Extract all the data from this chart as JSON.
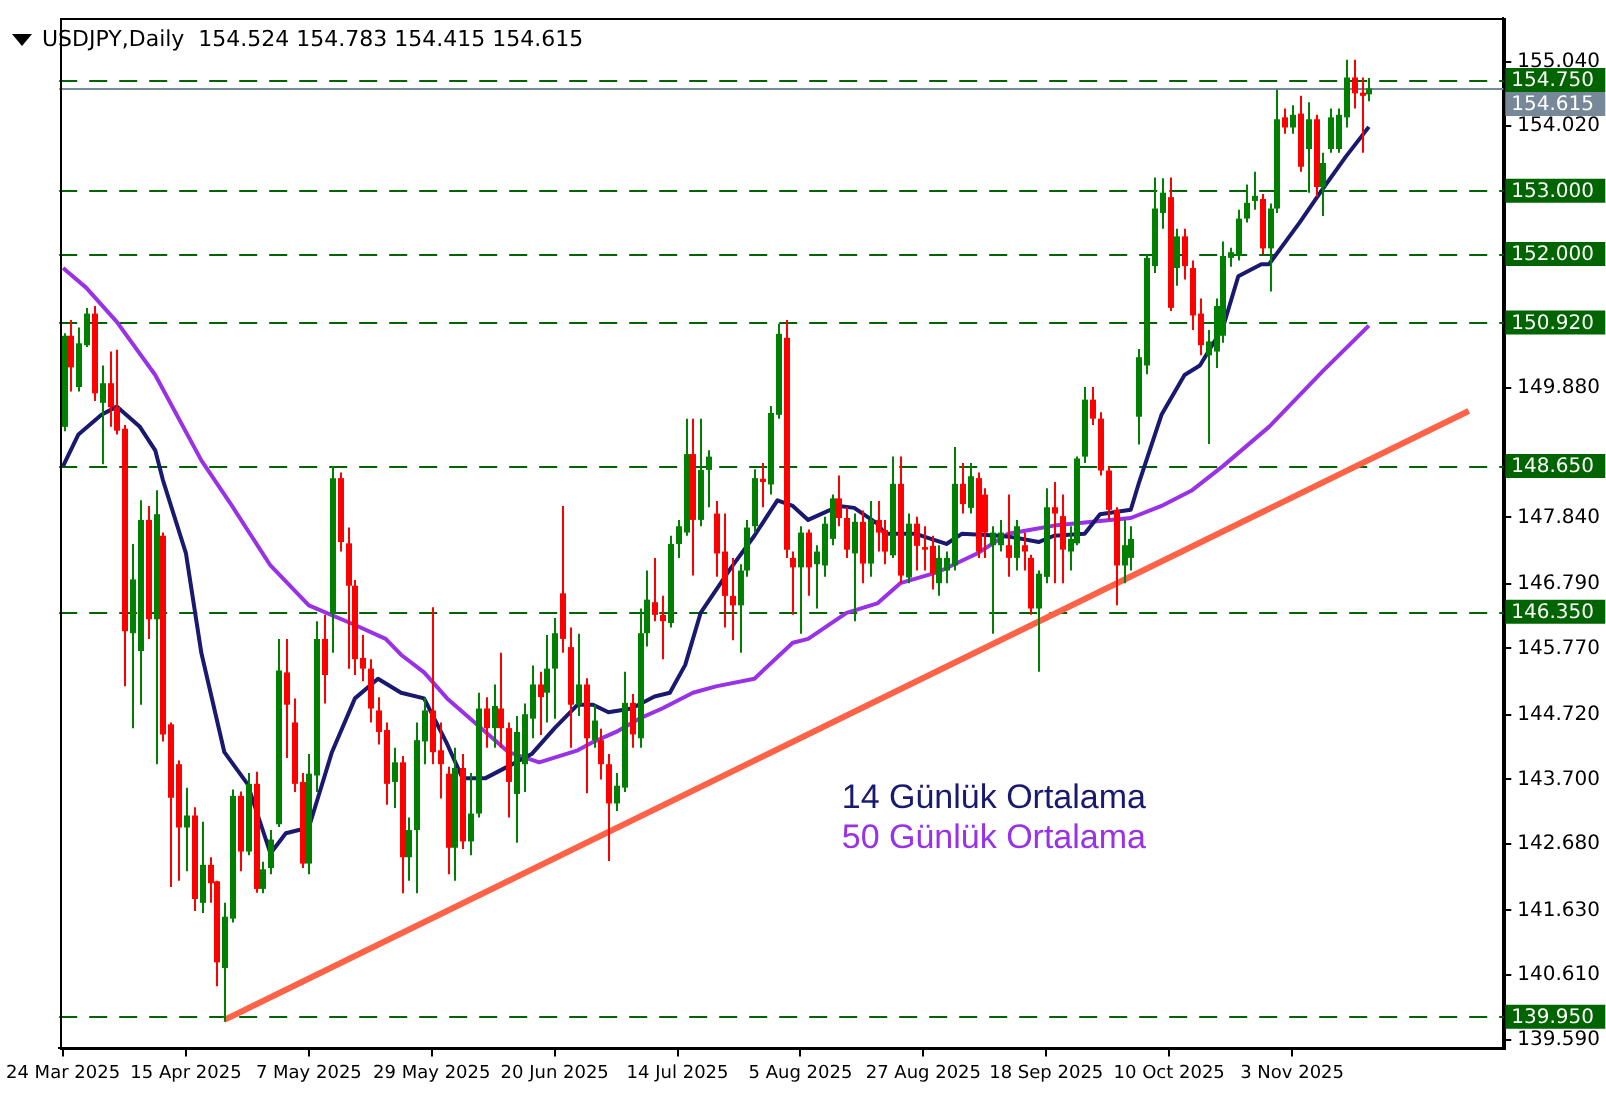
{
  "chart_data": {
    "type": "candlestick",
    "title": "USDJPY,Daily  154.524 154.783 154.415 154.615",
    "categories": [
      "24 Mar 2025",
      null,
      null,
      null,
      null,
      null,
      null,
      null,
      null,
      null,
      null,
      null,
      null,
      null,
      null,
      null,
      "15 Apr 2025",
      null,
      null,
      null,
      null,
      null,
      null,
      null,
      null,
      null,
      null,
      null,
      null,
      null,
      null,
      null,
      "7 May 2025",
      null,
      null,
      null,
      null,
      null,
      null,
      null,
      null,
      null,
      null,
      null,
      null,
      null,
      null,
      null,
      "29 May 2025",
      null,
      null,
      null,
      null,
      null,
      null,
      null,
      null,
      null,
      null,
      null,
      null,
      null,
      null,
      null,
      "20 Jun 2025",
      null,
      null,
      null,
      null,
      null,
      null,
      null,
      null,
      null,
      null,
      null,
      null,
      null,
      null,
      null,
      "14 Jul 2025",
      null,
      null,
      null,
      null,
      null,
      null,
      null,
      null,
      null,
      null,
      null,
      null,
      null,
      null,
      null,
      "5 Aug 2025",
      null,
      null,
      null,
      null,
      null,
      null,
      null,
      null,
      null,
      null,
      null,
      null,
      null,
      null,
      null,
      "27 Aug 2025",
      null,
      null,
      null,
      null,
      null,
      null,
      null,
      null,
      null,
      null,
      null,
      null,
      null,
      null,
      null,
      "18 Sep 2025",
      null,
      null,
      null,
      null,
      null,
      null,
      null,
      null,
      null,
      null,
      null,
      null,
      null,
      null,
      null,
      "10 Oct 2025",
      null,
      null,
      null,
      null,
      null,
      null,
      null,
      null,
      null,
      null,
      null,
      null,
      null,
      null,
      null,
      "3 Nov 2025",
      null,
      null,
      null,
      null,
      null,
      null,
      null,
      null,
      null,
      null,
      null,
      null,
      null,
      null,
      null,
      null,
      null,
      null,
      null,
      null,
      null,
      null,
      null,
      null,
      null,
      null,
      null
    ],
    "ohlc": [
      [
        149.27,
        150.75,
        149.2,
        150.71
      ],
      [
        150.71,
        150.96,
        149.83,
        150.21
      ],
      [
        149.9,
        150.84,
        149.83,
        150.59
      ],
      [
        150.56,
        151.15,
        150.53,
        151.06
      ],
      [
        151.06,
        151.18,
        149.68,
        149.8
      ],
      [
        149.65,
        150.24,
        148.68,
        149.96
      ],
      [
        149.96,
        150.46,
        149.27,
        149.58
      ],
      [
        149.58,
        150.49,
        149.15,
        149.21
      ],
      [
        149.24,
        149.3,
        145.17,
        146.04
      ],
      [
        146.01,
        147.42,
        144.51,
        146.86
      ],
      [
        145.73,
        148.11,
        144.88,
        147.8
      ],
      [
        147.8,
        148.02,
        145.92,
        146.23
      ],
      [
        146.23,
        148.27,
        143.94,
        147.89
      ],
      [
        147.55,
        147.6,
        144.3,
        144.41
      ],
      [
        144.57,
        144.6,
        142.0,
        143.41
      ],
      [
        143.94,
        144.0,
        142.1,
        142.94
      ],
      [
        142.94,
        143.57,
        142.25,
        143.13
      ],
      [
        143.13,
        143.26,
        141.62,
        141.81
      ],
      [
        141.75,
        143.03,
        141.59,
        142.35
      ],
      [
        142.35,
        142.47,
        141.75,
        142.06
      ],
      [
        142.09,
        142.1,
        140.43,
        140.81
      ],
      [
        140.72,
        141.75,
        139.87,
        141.53
      ],
      [
        141.5,
        143.54,
        141.44,
        143.44
      ],
      [
        143.44,
        143.51,
        142.25,
        142.56
      ],
      [
        142.56,
        143.8,
        142.5,
        143.63
      ],
      [
        143.63,
        143.82,
        141.91,
        141.97
      ],
      [
        141.97,
        142.4,
        141.9,
        142.28
      ],
      [
        142.3,
        142.9,
        142.2,
        142.75
      ],
      [
        142.99,
        145.92,
        142.95,
        145.42
      ],
      [
        145.39,
        145.92,
        144.04,
        144.88
      ],
      [
        144.6,
        144.98,
        143.5,
        143.63
      ],
      [
        143.66,
        143.8,
        142.3,
        142.37
      ],
      [
        142.37,
        144.1,
        142.2,
        143.79
      ],
      [
        143.76,
        146.2,
        143.5,
        145.92
      ],
      [
        145.92,
        146.3,
        144.9,
        145.35
      ],
      [
        146.32,
        148.65,
        145.7,
        148.46
      ],
      [
        148.46,
        148.55,
        147.3,
        147.45
      ],
      [
        147.43,
        147.68,
        145.45,
        146.76
      ],
      [
        146.76,
        146.85,
        145.35,
        145.6
      ],
      [
        145.62,
        145.98,
        145.25,
        145.45
      ],
      [
        145.45,
        145.6,
        144.6,
        144.82
      ],
      [
        144.79,
        145.0,
        144.25,
        144.45
      ],
      [
        144.48,
        144.6,
        143.3,
        143.63
      ],
      [
        143.66,
        144.2,
        143.25,
        143.97
      ],
      [
        143.97,
        144.07,
        141.9,
        142.47
      ],
      [
        142.47,
        143.1,
        142.1,
        142.9
      ],
      [
        142.9,
        144.6,
        141.9,
        144.32
      ],
      [
        144.3,
        145.0,
        143.94,
        144.79
      ],
      [
        144.79,
        146.42,
        143.94,
        144.13
      ],
      [
        144.16,
        144.6,
        143.4,
        143.94
      ],
      [
        143.79,
        143.9,
        142.2,
        142.62
      ],
      [
        142.62,
        144.2,
        142.1,
        143.88
      ],
      [
        143.88,
        144.1,
        142.6,
        142.72
      ],
      [
        142.72,
        143.8,
        142.5,
        143.16
      ],
      [
        143.16,
        145.07,
        143.1,
        144.82
      ],
      [
        144.82,
        145.0,
        144.2,
        144.51
      ],
      [
        144.51,
        145.2,
        144.2,
        144.86
      ],
      [
        144.82,
        145.7,
        144.2,
        144.51
      ],
      [
        144.51,
        144.6,
        143.1,
        143.66
      ],
      [
        143.47,
        144.7,
        142.7,
        144.45
      ],
      [
        143.94,
        144.9,
        143.5,
        144.73
      ],
      [
        144.66,
        145.5,
        144.35,
        145.2
      ],
      [
        145.2,
        145.4,
        144.4,
        145.0
      ],
      [
        145.07,
        145.98,
        144.6,
        145.45
      ],
      [
        145.45,
        146.25,
        144.66,
        146.01
      ],
      [
        146.64,
        148.02,
        145.7,
        145.92
      ],
      [
        145.79,
        146.1,
        144.2,
        144.88
      ],
      [
        144.88,
        146.0,
        144.7,
        145.2
      ],
      [
        145.2,
        145.3,
        143.48,
        144.35
      ],
      [
        144.32,
        144.88,
        144.2,
        144.63
      ],
      [
        144.32,
        144.5,
        143.7,
        143.94
      ],
      [
        143.94,
        144.1,
        142.41,
        143.32
      ],
      [
        143.32,
        143.8,
        143.2,
        143.6
      ],
      [
        143.57,
        145.4,
        143.5,
        144.91
      ],
      [
        144.91,
        145.05,
        144.2,
        144.41
      ],
      [
        144.35,
        146.4,
        144.2,
        146.01
      ],
      [
        146.01,
        147.0,
        145.8,
        146.54
      ],
      [
        146.5,
        147.2,
        146.2,
        146.3
      ],
      [
        146.3,
        146.6,
        145.6,
        146.2
      ],
      [
        146.17,
        147.55,
        146.1,
        147.42
      ],
      [
        147.42,
        147.8,
        147.2,
        147.7
      ],
      [
        147.6,
        149.4,
        147.55,
        148.84
      ],
      [
        148.84,
        149.4,
        146.92,
        147.8
      ],
      [
        147.8,
        149.4,
        147.7,
        148.59
      ],
      [
        148.59,
        148.9,
        148.0,
        148.8
      ],
      [
        147.9,
        148.1,
        146.9,
        147.27
      ],
      [
        147.3,
        147.9,
        146.1,
        146.6
      ],
      [
        146.6,
        147.2,
        145.9,
        146.45
      ],
      [
        146.45,
        147.1,
        145.7,
        147.0
      ],
      [
        147.0,
        147.8,
        146.9,
        147.68
      ],
      [
        147.7,
        148.6,
        147.6,
        148.46
      ],
      [
        148.45,
        148.7,
        148.0,
        148.4
      ],
      [
        148.36,
        149.6,
        148.2,
        149.49
      ],
      [
        149.46,
        150.9,
        149.4,
        150.74
      ],
      [
        150.68,
        150.96,
        147.2,
        147.33
      ],
      [
        147.2,
        147.3,
        146.3,
        147.05
      ],
      [
        147.05,
        147.7,
        146.0,
        147.6
      ],
      [
        147.6,
        147.65,
        146.6,
        147.05
      ],
      [
        147.1,
        147.4,
        146.4,
        147.3
      ],
      [
        147.08,
        147.85,
        146.9,
        147.74
      ],
      [
        147.5,
        148.2,
        147.4,
        148.14
      ],
      [
        148.14,
        148.5,
        147.7,
        147.83
      ],
      [
        147.83,
        148.0,
        147.2,
        147.33
      ],
      [
        147.27,
        147.9,
        146.2,
        147.77
      ],
      [
        147.77,
        147.95,
        146.8,
        147.11
      ],
      [
        147.11,
        148.1,
        146.9,
        147.8
      ],
      [
        147.8,
        148.1,
        147.3,
        147.6
      ],
      [
        147.64,
        147.8,
        147.1,
        147.3
      ],
      [
        147.24,
        148.8,
        147.2,
        148.37
      ],
      [
        148.37,
        148.8,
        146.8,
        146.92
      ],
      [
        146.89,
        147.9,
        146.8,
        147.74
      ],
      [
        147.74,
        147.85,
        147.0,
        147.39
      ],
      [
        147.37,
        147.7,
        147.0,
        147.33
      ],
      [
        147.39,
        147.55,
        146.7,
        146.95
      ],
      [
        146.8,
        147.4,
        146.6,
        147.2
      ],
      [
        147.0,
        147.3,
        146.8,
        147.2
      ],
      [
        147.08,
        148.95,
        147.0,
        148.37
      ],
      [
        148.37,
        148.7,
        147.9,
        148.05
      ],
      [
        147.99,
        148.7,
        147.9,
        148.49
      ],
      [
        148.46,
        148.55,
        147.2,
        147.3
      ],
      [
        148.2,
        148.3,
        147.2,
        147.6
      ],
      [
        147.4,
        147.7,
        146.0,
        147.6
      ],
      [
        147.4,
        147.8,
        147.3,
        147.6
      ],
      [
        147.4,
        148.2,
        146.9,
        147.2
      ],
      [
        147.2,
        147.8,
        147.0,
        147.7
      ],
      [
        147.4,
        147.6,
        147.0,
        147.3
      ],
      [
        147.2,
        147.25,
        146.3,
        146.4
      ],
      [
        146.4,
        147.0,
        145.4,
        146.95
      ],
      [
        146.9,
        148.3,
        146.8,
        148.0
      ],
      [
        148.0,
        148.4,
        146.8,
        147.9
      ],
      [
        147.86,
        148.2,
        146.8,
        147.33
      ],
      [
        147.3,
        147.7,
        147.0,
        147.5
      ],
      [
        147.43,
        148.8,
        147.4,
        148.77
      ],
      [
        148.8,
        149.9,
        148.7,
        149.7
      ],
      [
        149.7,
        149.9,
        149.3,
        149.4
      ],
      [
        149.4,
        149.5,
        148.5,
        148.58
      ],
      [
        148.58,
        148.65,
        147.8,
        147.96
      ],
      [
        147.96,
        148.0,
        146.45,
        147.08
      ],
      [
        147.08,
        147.8,
        146.8,
        147.4
      ],
      [
        147.2,
        147.7,
        147.0,
        147.5
      ],
      [
        149.43,
        150.5,
        148.99,
        150.37
      ],
      [
        150.24,
        152.0,
        150.1,
        151.94
      ],
      [
        151.81,
        153.21,
        151.7,
        152.72
      ],
      [
        152.65,
        153.2,
        152.4,
        152.97
      ],
      [
        152.9,
        153.21,
        151.1,
        151.15
      ],
      [
        151.78,
        152.4,
        151.5,
        152.28
      ],
      [
        152.28,
        152.4,
        151.6,
        151.81
      ],
      [
        151.78,
        151.9,
        150.8,
        151.03
      ],
      [
        151.06,
        151.3,
        150.4,
        150.56
      ],
      [
        150.4,
        150.8,
        149.0,
        150.62
      ],
      [
        150.46,
        151.3,
        150.2,
        151.18
      ],
      [
        150.71,
        152.2,
        150.6,
        151.97
      ],
      [
        151.94,
        152.1,
        151.8,
        152.03
      ],
      [
        151.97,
        152.7,
        151.9,
        152.56
      ],
      [
        152.56,
        153.1,
        152.5,
        152.81
      ],
      [
        152.84,
        153.3,
        152.7,
        152.92
      ],
      [
        152.87,
        152.95,
        152.0,
        152.09
      ],
      [
        152.09,
        152.8,
        151.41,
        152.72
      ],
      [
        152.72,
        154.6,
        152.65,
        154.13
      ],
      [
        154.16,
        154.3,
        153.9,
        154.0
      ],
      [
        154.0,
        154.35,
        153.9,
        154.2
      ],
      [
        154.22,
        154.5,
        153.3,
        153.38
      ],
      [
        153.66,
        154.4,
        152.97,
        154.13
      ],
      [
        154.13,
        154.2,
        152.9,
        153.06
      ],
      [
        153.06,
        153.6,
        152.6,
        153.44
      ],
      [
        153.66,
        154.3,
        153.6,
        154.16
      ],
      [
        153.66,
        154.3,
        153.6,
        154.2
      ],
      [
        154.16,
        155.07,
        154.0,
        154.79
      ],
      [
        154.79,
        155.07,
        154.3,
        154.54
      ],
      [
        154.55,
        154.79,
        153.6,
        154.5
      ],
      [
        154.524,
        154.783,
        154.415,
        154.615
      ],
      null,
      null,
      null,
      null,
      null,
      null,
      null,
      null,
      null,
      null,
      null,
      null,
      null,
      null,
      null,
      null,
      null
    ],
    "colors": [
      "#008000",
      "#ff0000",
      "#008000",
      "#008000",
      "#ff0000",
      "#008000",
      "#ff0000",
      "#ff0000",
      "#ff0000",
      "#008000",
      "#008000",
      "#ff0000",
      "#008000",
      "#ff0000",
      "#ff0000",
      "#ff0000",
      "#008000",
      "#ff0000",
      "#008000",
      "#ff0000",
      "#ff0000",
      "#008000",
      "#008000",
      "#ff0000",
      "#008000",
      "#ff0000",
      "#008000",
      "#008000",
      "#008000",
      "#ff0000",
      "#ff0000",
      "#ff0000",
      "#008000",
      "#008000",
      "#ff0000",
      "#008000",
      "#ff0000",
      "#ff0000",
      "#ff0000",
      "#ff0000",
      "#ff0000",
      "#ff0000",
      "#ff0000",
      "#008000",
      "#ff0000",
      "#008000",
      "#008000",
      "#008000",
      "#ff0000",
      "#ff0000",
      "#ff0000",
      "#008000",
      "#ff0000",
      "#008000",
      "#008000",
      "#ff0000",
      "#008000",
      "#ff0000",
      "#ff0000",
      "#008000",
      "#008000",
      "#008000",
      "#ff0000",
      "#008000",
      "#008000",
      "#ff0000",
      "#ff0000",
      "#008000",
      "#ff0000",
      "#008000",
      "#ff0000",
      "#ff0000",
      "#008000",
      "#008000",
      "#ff0000",
      "#008000",
      "#008000",
      "#ff0000",
      "#ff0000",
      "#008000",
      "#008000",
      "#008000",
      "#ff0000",
      "#008000",
      "#008000",
      "#ff0000",
      "#ff0000",
      "#ff0000",
      "#008000",
      "#008000",
      "#008000",
      "#ff0000",
      "#008000",
      "#008000",
      "#ff0000",
      "#ff0000",
      "#008000",
      "#ff0000",
      "#008000",
      "#008000",
      "#008000",
      "#ff0000",
      "#ff0000",
      "#008000",
      "#ff0000",
      "#008000",
      "#ff0000",
      "#ff0000",
      "#008000",
      "#ff0000",
      "#008000",
      "#ff0000",
      "#ff0000",
      "#ff0000",
      "#008000",
      "#008000",
      "#008000",
      "#ff0000",
      "#008000",
      "#ff0000",
      "#ff0000",
      "#008000",
      "#008000",
      "#ff0000",
      "#008000",
      "#ff0000",
      "#ff0000",
      "#008000",
      "#008000",
      "#ff0000",
      "#ff0000",
      "#008000",
      "#008000",
      "#008000",
      "#ff0000",
      "#ff0000",
      "#ff0000",
      "#ff0000",
      "#008000",
      "#008000",
      "#008000",
      "#008000",
      "#008000",
      "#008000",
      "#ff0000",
      "#008000",
      "#ff0000",
      "#ff0000",
      "#ff0000",
      "#008000",
      "#008000",
      "#008000",
      "#008000",
      "#008000",
      "#008000",
      "#008000",
      "#ff0000",
      "#008000",
      "#008000",
      "#ff0000",
      "#008000",
      "#ff0000",
      "#008000",
      "#ff0000",
      "#008000",
      "#008000",
      "#008000",
      "#008000",
      "#ff0000",
      "#ff0000",
      "#008000",
      null,
      null,
      null,
      null,
      null,
      null,
      null,
      null,
      null,
      null,
      null,
      null,
      null,
      null,
      null,
      null,
      null
    ],
    "series": [
      {
        "name": "14 Günlük Ortalama",
        "type": "line",
        "color": "#191970",
        "values": [
          148.65,
          null,
          149.15,
          null,
          null,
          149.46,
          null,
          149.59,
          null,
          null,
          149.27,
          null,
          148.9,
          148.43,
          null,
          null,
          147.27,
          null,
          145.7,
          null,
          null,
          144.13,
          null,
          null,
          143.63,
          null,
          null,
          142.53,
          null,
          142.85,
          null,
          null,
          142.94,
          null,
          null,
          144.13,
          null,
          null,
          144.98,
          null,
          null,
          145.29,
          null,
          null,
          145.07,
          null,
          null,
          144.98,
          null,
          null,
          144.26,
          null,
          143.72,
          null,
          null,
          143.72,
          null,
          null,
          null,
          null,
          null,
          144.1,
          null,
          null,
          144.51,
          null,
          null,
          144.88,
          null,
          144.88,
          null,
          144.76,
          null,
          null,
          144.82,
          null,
          null,
          145.01,
          null,
          145.07,
          null,
          145.51,
          null,
          146.33,
          null,
          null,
          null,
          147.05,
          null,
          null,
          147.55,
          null,
          null,
          148.11,
          null,
          148.02,
          null,
          147.8,
          null,
          null,
          null,
          148.02,
          null,
          147.99,
          null,
          null,
          147.74,
          147.58,
          null,
          null,
          null,
          147.58,
          null,
          null,
          null,
          147.42,
          null,
          147.58,
          null,
          null,
          null,
          null,
          147.55,
          null,
          147.52,
          null,
          null,
          147.45,
          null,
          147.55,
          null,
          null,
          null,
          147.58,
          null,
          147.89,
          null,
          null,
          null,
          147.96,
          148.36,
          null,
          null,
          149.46,
          null,
          null,
          150.09,
          null,
          150.24,
          null,
          null,
          150.84,
          null,
          151.65,
          null,
          null,
          151.84,
          151.84,
          null,
          null,
          null,
          152.5,
          null,
          null,
          153.03,
          null,
          null,
          153.54,
          null,
          null,
          154.01,
          null,
          null,
          null,
          null,
          null,
          null,
          null,
          null,
          null,
          null,
          null,
          null,
          null,
          null,
          null,
          null,
          null
        ]
      },
      {
        "name": "50 Günlük Ortalama",
        "type": "line",
        "color": "#9932e6",
        "values": [
          151.78,
          null,
          null,
          151.47,
          null,
          null,
          null,
          150.93,
          null,
          null,
          null,
          null,
          150.09,
          null,
          null,
          null,
          null,
          null,
          148.74,
          null,
          null,
          null,
          148.02,
          null,
          null,
          null,
          null,
          147.08,
          null,
          null,
          null,
          null,
          146.45,
          null,
          null,
          null,
          null,
          null,
          146.14,
          null,
          null,
          null,
          145.92,
          null,
          145.67,
          null,
          null,
          145.39,
          null,
          null,
          144.98,
          null,
          null,
          null,
          null,
          144.45,
          null,
          null,
          144.13,
          null,
          null,
          null,
          143.97,
          null,
          null,
          null,
          null,
          144.16,
          null,
          144.29,
          null,
          null,
          144.45,
          null,
          null,
          144.66,
          null,
          null,
          144.82,
          null,
          null,
          null,
          145.07,
          null,
          null,
          145.17,
          null,
          null,
          null,
          null,
          145.29,
          null,
          null,
          null,
          null,
          145.86,
          null,
          145.92,
          null,
          null,
          null,
          null,
          146.33,
          null,
          null,
          null,
          146.48,
          null,
          null,
          146.8,
          null,
          null,
          null,
          null,
          146.98,
          null,
          null,
          null,
          null,
          147.27,
          null,
          null,
          null,
          147.58,
          null,
          null,
          null,
          null,
          null,
          147.71,
          null,
          null,
          null,
          null,
          null,
          null,
          null,
          null,
          null,
          147.83,
          null,
          null,
          null,
          148.02,
          null,
          null,
          null,
          148.27,
          null,
          null,
          null,
          148.65,
          null,
          null,
          null,
          null,
          null,
          149.27,
          null,
          null,
          null,
          null,
          null,
          null,
          150.15,
          null,
          null,
          null,
          null,
          null,
          150.87,
          null,
          null,
          null,
          null,
          null,
          null,
          null,
          null,
          null,
          null,
          null,
          null,
          null,
          null,
          null,
          null,
          null
        ]
      },
      {
        "type": "line",
        "color": "#ff6347",
        "values": [
          null,
          null,
          null,
          null,
          null,
          null,
          null,
          null,
          null,
          null,
          null,
          null,
          null,
          null,
          null,
          null,
          null,
          null,
          null,
          null,
          null,
          139.9,
          null,
          null,
          null,
          null,
          null,
          null,
          null,
          null,
          null,
          null,
          null,
          null,
          null,
          null,
          null,
          null,
          null,
          null,
          null,
          null,
          null,
          null,
          null,
          null,
          null,
          null,
          null,
          null,
          null,
          null,
          null,
          null,
          null,
          null,
          null,
          null,
          null,
          null,
          null,
          null,
          null,
          null,
          null,
          null,
          null,
          null,
          null,
          null,
          null,
          null,
          null,
          null,
          null,
          null,
          null,
          null,
          null,
          null,
          null,
          null,
          null,
          null,
          null,
          null,
          null,
          null,
          null,
          null,
          null,
          null,
          null,
          null,
          null,
          null,
          null,
          null,
          null,
          null,
          null,
          null,
          null,
          null,
          null,
          null,
          null,
          null,
          null,
          null,
          null,
          null,
          null,
          null,
          null,
          null,
          null,
          null,
          null,
          null,
          null,
          null,
          null,
          null,
          null,
          null,
          null,
          null,
          null,
          null,
          null,
          null,
          null,
          null,
          null,
          null,
          null,
          null,
          null,
          null,
          null,
          null,
          null,
          null,
          null,
          null,
          null,
          null,
          null,
          null,
          null,
          null,
          null,
          null,
          null,
          null,
          null,
          null,
          null,
          null,
          null,
          null,
          null,
          null,
          null,
          null,
          null,
          null,
          null,
          null,
          null,
          null,
          null,
          null,
          null,
          null,
          null,
          null,
          null,
          null,
          null,
          null,
          null,
          149.52,
          null,
          null,
          null,
          null
        ]
      }
    ],
    "ylim": [
      139.45,
      155.73
    ],
    "yticks": [
      {
        "value": 139.59,
        "label": "139.590"
      },
      {
        "value": 140.61,
        "label": "140.610"
      },
      {
        "value": 141.63,
        "label": "141.630"
      },
      {
        "value": 142.68,
        "label": "142.680"
      },
      {
        "value": 143.7,
        "label": "143.700"
      },
      {
        "value": 144.72,
        "label": "144.720"
      },
      {
        "value": 145.77,
        "label": "145.770"
      },
      {
        "value": 146.79,
        "label": "146.790"
      },
      {
        "value": 147.84,
        "label": "147.840"
      },
      {
        "value": 149.88,
        "label": "149.880"
      },
      {
        "value": 154.02,
        "label": "154.020"
      },
      {
        "value": 155.04,
        "label": "155.040"
      }
    ],
    "ref_lines": [
      {
        "axis": "y",
        "value": 154.75,
        "label": "154.750",
        "color": "#006400",
        "line_style": "dashed"
      },
      {
        "axis": "y",
        "value": 154.615,
        "label": "154.615",
        "color": "#778899",
        "line_style": "solid"
      },
      {
        "axis": "y",
        "value": 153.0,
        "label": "153.000",
        "color": "#006400",
        "line_style": "dashed"
      },
      {
        "axis": "y",
        "value": 152.0,
        "label": "152.000",
        "color": "#006400",
        "line_style": "dashed"
      },
      {
        "axis": "y",
        "value": 150.92,
        "label": "150.920",
        "color": "#006400",
        "line_style": "dashed"
      },
      {
        "axis": "y",
        "value": 148.65,
        "label": "148.650",
        "color": "#006400",
        "line_style": "dashed"
      },
      {
        "axis": "y",
        "value": 146.35,
        "label": "146.350",
        "color": "#006400",
        "line_style": "dashed"
      },
      {
        "axis": "y",
        "value": 139.95,
        "label": "139.950",
        "color": "#006400",
        "line_style": "dashed"
      }
    ],
    "legend": "bottom right",
    "grid": false
  }
}
